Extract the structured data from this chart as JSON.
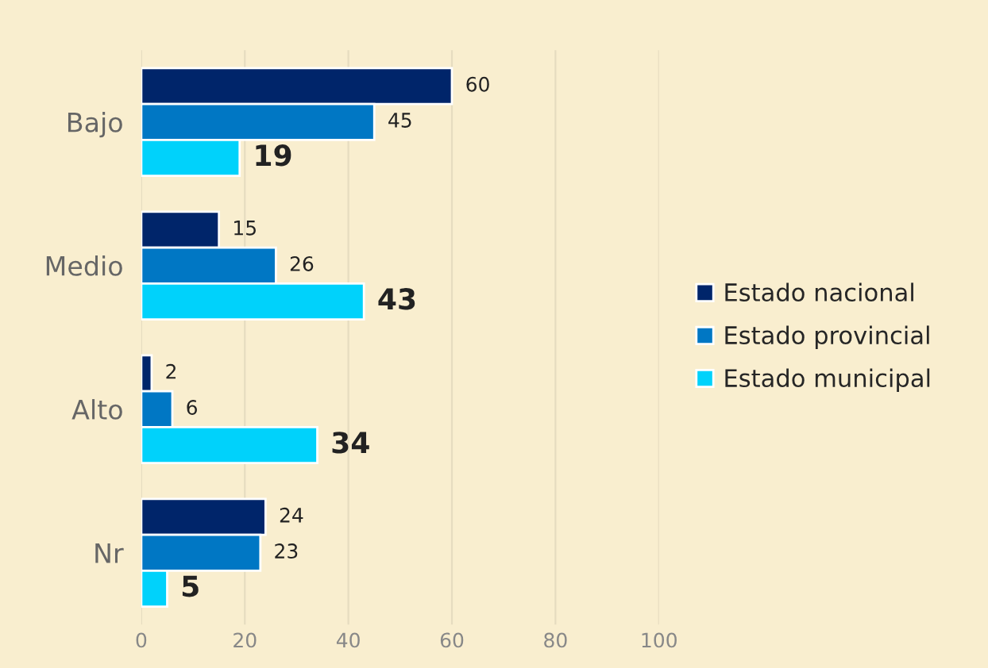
{
  "chart_data": {
    "type": "bar",
    "orientation": "horizontal",
    "categories": [
      "Bajo",
      "Medio",
      "Alto",
      "Nr"
    ],
    "series": [
      {
        "name": "Estado nacional",
        "color": "#00256a",
        "values": [
          60,
          15,
          2,
          24
        ]
      },
      {
        "name": "Estado provincial",
        "color": "#0077c4",
        "values": [
          45,
          26,
          6,
          23
        ]
      },
      {
        "name": "Estado municipal",
        "color": "#00d2fb",
        "values": [
          19,
          43,
          34,
          5
        ]
      }
    ],
    "xlim": [
      0,
      100
    ],
    "xticks": [
      0,
      20,
      40,
      60,
      80,
      100
    ],
    "grid": "x",
    "legend": "right",
    "data_labels": true
  }
}
